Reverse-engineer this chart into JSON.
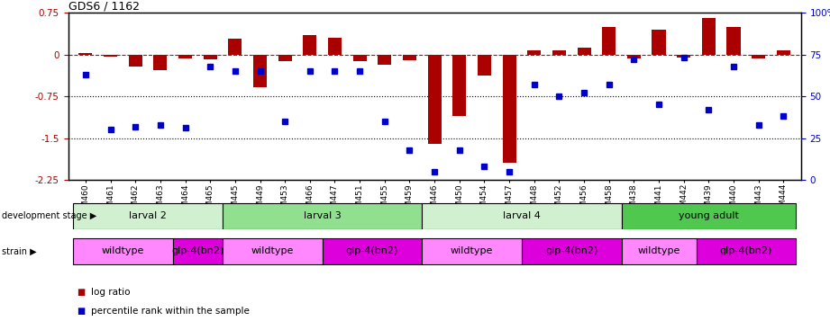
{
  "title": "GDS6 / 1162",
  "samples": [
    "GSM460",
    "GSM461",
    "GSM462",
    "GSM463",
    "GSM464",
    "GSM465",
    "GSM445",
    "GSM449",
    "GSM453",
    "GSM466",
    "GSM447",
    "GSM451",
    "GSM455",
    "GSM459",
    "GSM446",
    "GSM450",
    "GSM454",
    "GSM457",
    "GSM448",
    "GSM452",
    "GSM456",
    "GSM458",
    "GSM438",
    "GSM441",
    "GSM442",
    "GSM439",
    "GSM440",
    "GSM443",
    "GSM444"
  ],
  "log_ratio": [
    0.03,
    -0.04,
    -0.22,
    -0.28,
    -0.07,
    -0.08,
    0.28,
    -0.58,
    -0.12,
    0.35,
    0.3,
    -0.12,
    -0.18,
    -0.1,
    -1.6,
    -1.1,
    -0.38,
    -1.95,
    0.07,
    0.08,
    0.12,
    0.5,
    -0.07,
    0.45,
    -0.06,
    0.65,
    0.5,
    -0.07,
    0.07
  ],
  "percentile": [
    63,
    30,
    32,
    33,
    31,
    68,
    65,
    65,
    35,
    65,
    65,
    65,
    35,
    18,
    5,
    18,
    8,
    5,
    57,
    50,
    52,
    57,
    72,
    45,
    73,
    42,
    68,
    33,
    38
  ],
  "dev_stages": [
    {
      "label": "larval 2",
      "start": 0,
      "end": 6,
      "color": "#d0f0d0"
    },
    {
      "label": "larval 3",
      "start": 6,
      "end": 14,
      "color": "#90e090"
    },
    {
      "label": "larval 4",
      "start": 14,
      "end": 22,
      "color": "#d0f0d0"
    },
    {
      "label": "young adult",
      "start": 22,
      "end": 29,
      "color": "#50c850"
    }
  ],
  "strains": [
    {
      "label": "wildtype",
      "start": 0,
      "end": 4,
      "color": "#ff88ff"
    },
    {
      "label": "glp-4(bn2)",
      "start": 4,
      "end": 6,
      "color": "#dd00dd"
    },
    {
      "label": "wildtype",
      "start": 6,
      "end": 10,
      "color": "#ff88ff"
    },
    {
      "label": "glp-4(bn2)",
      "start": 10,
      "end": 14,
      "color": "#dd00dd"
    },
    {
      "label": "wildtype",
      "start": 14,
      "end": 18,
      "color": "#ff88ff"
    },
    {
      "label": "glp-4(bn2)",
      "start": 18,
      "end": 22,
      "color": "#dd00dd"
    },
    {
      "label": "wildtype",
      "start": 22,
      "end": 25,
      "color": "#ff88ff"
    },
    {
      "label": "glp-4(bn2)",
      "start": 25,
      "end": 29,
      "color": "#dd00dd"
    }
  ],
  "ylim_left": [
    -2.25,
    0.75
  ],
  "ylim_right": [
    0,
    100
  ],
  "bar_color": "#aa0000",
  "dot_color": "#0000cc",
  "hline_color": "#cc0000",
  "dot_gridlines": [
    -0.75,
    -1.5
  ],
  "background_color": "#ffffff"
}
